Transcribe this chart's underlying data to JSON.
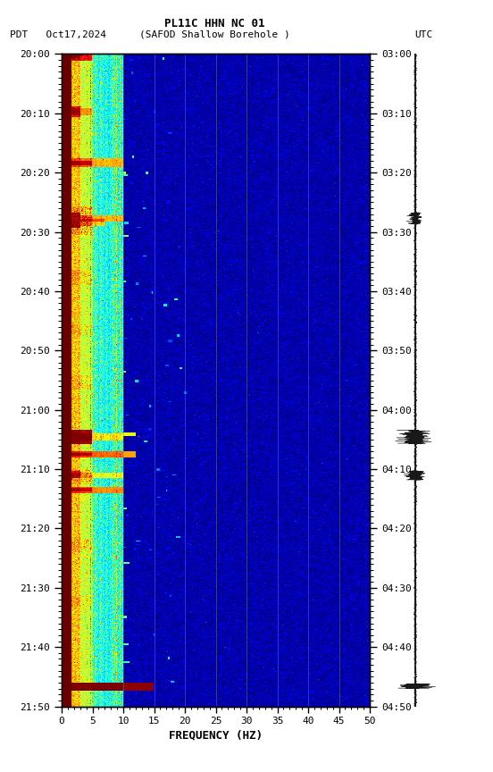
{
  "title_line1": "PL11C HHN NC 01",
  "title_line2_left": "PDT   Oct17,2024",
  "title_line2_mid": "(SAFOD Shallow Borehole )",
  "title_line2_right": "UTC",
  "xlabel": "FREQUENCY (HZ)",
  "ylabel_left_ticks": [
    "20:00",
    "20:10",
    "20:20",
    "20:30",
    "20:40",
    "20:50",
    "21:00",
    "21:10",
    "21:20",
    "21:30",
    "21:40",
    "21:50"
  ],
  "ylabel_right_ticks": [
    "03:00",
    "03:10",
    "03:20",
    "03:30",
    "03:40",
    "03:50",
    "04:00",
    "04:10",
    "04:20",
    "04:30",
    "04:40",
    "04:50"
  ],
  "freq_min": 0,
  "freq_max": 50,
  "freq_ticks": [
    0,
    5,
    10,
    15,
    20,
    25,
    30,
    35,
    40,
    45,
    50
  ],
  "colormap": "jet",
  "n_time": 720,
  "n_freq": 500,
  "seed": 42,
  "vline_freqs": [
    10,
    15,
    20,
    25,
    30,
    35,
    40,
    45
  ],
  "vline_color": "#888888",
  "vline_alpha": 0.5
}
